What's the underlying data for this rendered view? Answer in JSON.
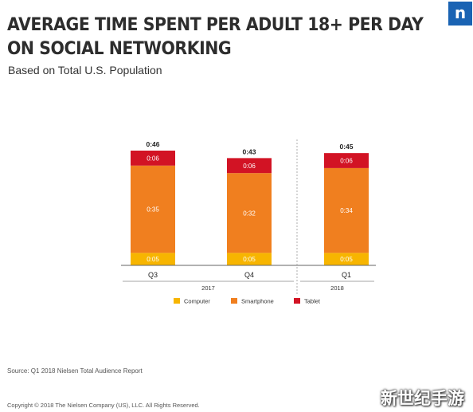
{
  "header": {
    "title_line1": "AVERAGE TIME SPENT PER ADULT 18+ PER DAY",
    "title_line2": "ON SOCIAL NETWORKING",
    "subtitle": "Based on Total U.S. Population",
    "logo_letter": "n",
    "brand_color": "#1a63b3"
  },
  "chart_data": {
    "type": "bar",
    "stacked": true,
    "categories": [
      "Q3",
      "Q4",
      "Q1"
    ],
    "category_groups": [
      {
        "label": "2017",
        "categories": [
          "Q3",
          "Q4"
        ]
      },
      {
        "label": "2018",
        "categories": [
          "Q1"
        ]
      }
    ],
    "value_unit": "h:mm",
    "totals": [
      "0:46",
      "0:43",
      "0:45"
    ],
    "series": [
      {
        "name": "Computer",
        "color": "#f7b500",
        "values": [
          5,
          5,
          5
        ],
        "labels": [
          "0:05",
          "0:05",
          "0:05"
        ]
      },
      {
        "name": "Smartphone",
        "color": "#f07f1f",
        "values": [
          35,
          32,
          34
        ],
        "labels": [
          "0:35",
          "0:32",
          "0:34"
        ]
      },
      {
        "name": "Tablet",
        "color": "#d21324",
        "values": [
          6,
          6,
          6
        ],
        "labels": [
          "0:06",
          "0:06",
          "0:06"
        ]
      }
    ],
    "ylim": [
      0,
      46
    ],
    "grid": false,
    "legend_position": "bottom"
  },
  "footer": {
    "source": "Source: Q1 2018 Nielsen Total Audience Report",
    "copyright": "Copyright © 2018 The Nielsen Company (US), LLC. All Rights Reserved."
  },
  "watermark": {
    "text": "新世纪手游"
  }
}
